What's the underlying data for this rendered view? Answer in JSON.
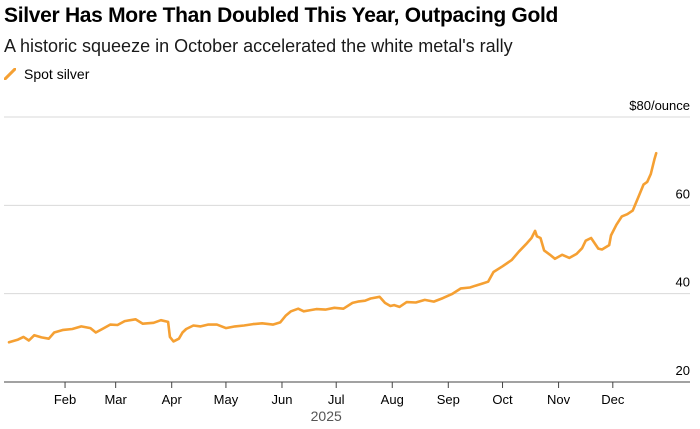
{
  "colors": {
    "series": "#F5A033",
    "grid": "#d9d9d9",
    "axis": "#444444"
  },
  "chart_data": {
    "type": "line",
    "title": "Silver Has More Than Doubled This Year, Outpacing Gold",
    "subtitle": "A historic squeeze in October accelerated the white metal's rally",
    "legend": [
      "Spot silver"
    ],
    "legend_position": "top-left",
    "ylabel": "$80/ounce",
    "ylim": [
      20,
      80
    ],
    "yticks": [
      {
        "value": 80,
        "label": "$80/ounce"
      },
      {
        "value": 60,
        "label": "60"
      },
      {
        "value": 40,
        "label": "40"
      },
      {
        "value": 20,
        "label": "20"
      }
    ],
    "xlim": [
      0,
      359
    ],
    "xticks": [
      {
        "value": 31,
        "label": "Feb"
      },
      {
        "value": 59,
        "label": "Mar"
      },
      {
        "value": 90,
        "label": "Apr"
      },
      {
        "value": 120,
        "label": "May"
      },
      {
        "value": 151,
        "label": "Jun"
      },
      {
        "value": 181,
        "label": "Jul"
      },
      {
        "value": 212,
        "label": "Aug"
      },
      {
        "value": 243,
        "label": "Sep"
      },
      {
        "value": 273,
        "label": "Oct"
      },
      {
        "value": 304,
        "label": "Nov"
      },
      {
        "value": 334,
        "label": "Dec"
      }
    ],
    "xlabel": "2025",
    "series": [
      {
        "name": "Spot silver",
        "x": [
          0,
          5,
          8,
          11,
          14,
          18,
          22,
          25,
          30,
          35,
          40,
          45,
          48,
          52,
          56,
          60,
          64,
          70,
          74,
          80,
          84,
          88,
          89,
          91,
          94,
          96,
          98,
          102,
          106,
          110,
          115,
          120,
          125,
          130,
          135,
          140,
          146,
          150,
          153,
          156,
          160,
          163,
          166,
          170,
          175,
          180,
          185,
          190,
          193,
          197,
          200,
          205,
          208,
          211,
          213,
          216,
          220,
          225,
          230,
          235,
          240,
          245,
          250,
          255,
          258,
          262,
          265,
          268,
          273,
          278,
          282,
          286,
          289,
          291,
          292,
          294,
          296,
          299,
          302,
          306,
          310,
          314,
          317,
          319,
          322,
          326,
          328,
          332,
          333,
          336,
          339,
          342,
          345,
          348,
          351,
          353,
          355,
          357,
          358
        ],
        "values": [
          29.0,
          29.6,
          30.2,
          29.4,
          30.6,
          30.1,
          29.8,
          31.2,
          31.8,
          32.0,
          32.6,
          32.2,
          31.2,
          32.1,
          33.0,
          32.9,
          33.8,
          34.2,
          33.2,
          33.4,
          34.0,
          33.6,
          30.2,
          29.2,
          29.8,
          31.2,
          32.0,
          32.8,
          32.6,
          33.0,
          33.0,
          32.2,
          32.6,
          32.8,
          33.1,
          33.3,
          33.0,
          33.5,
          35.0,
          36.0,
          36.6,
          36.0,
          36.2,
          36.5,
          36.4,
          36.8,
          36.6,
          37.9,
          38.2,
          38.4,
          38.9,
          39.3,
          37.9,
          37.2,
          37.4,
          37.0,
          38.1,
          38.0,
          38.6,
          38.2,
          39.0,
          39.9,
          41.2,
          41.4,
          41.8,
          42.3,
          42.7,
          44.9,
          46.2,
          47.6,
          49.5,
          51.2,
          52.6,
          54.2,
          53.0,
          52.6,
          49.8,
          48.9,
          47.9,
          48.8,
          48.1,
          49.0,
          50.3,
          52.0,
          52.6,
          50.2,
          50.0,
          51.0,
          53.2,
          55.6,
          57.5,
          58.0,
          58.8,
          61.7,
          64.7,
          65.3,
          67.1,
          70.4,
          71.8
        ]
      }
    ]
  }
}
